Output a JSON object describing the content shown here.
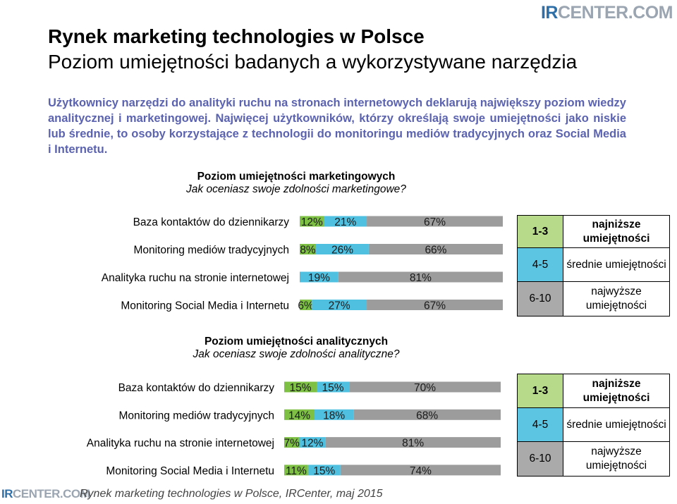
{
  "brand": {
    "logo_ir": "IR",
    "logo_rest": "CENTER.COM"
  },
  "header": {
    "title": "Rynek marketing technologies w Polsce",
    "subtitle": "Poziom umiejętności badanych a wykorzystywane narzędzia"
  },
  "intro": "Użytkownicy narzędzi do analityki ruchu na stronach internetowych deklarują największy poziom wiedzy analitycznej i marketingowej. Najwięcej użytkowników, którzy określają swoje umiejętności jako niskie lub średnie, to osoby korzystające z technologii do monitoringu mediów tradycyjnych oraz Social Media i Internetu.",
  "colors": {
    "low": "#7dc043",
    "mid": "#4fc0e0",
    "high": "#9c9c9c"
  },
  "legend": {
    "k1": "1-3",
    "d1": "najniższe umiejętności",
    "k2": "4-5",
    "d2": "średnie umiejętności",
    "k3": "6-10",
    "d3": "najwyższe umiejętności"
  },
  "chart_data": [
    {
      "type": "bar",
      "stacked": true,
      "orientation": "horizontal",
      "title": "Poziom umiejętności marketingowych",
      "subtitle": "Jak oceniasz swoje zdolności marketingowe?",
      "categories": [
        "Baza kontaktów do dziennikarzy",
        "Monitoring mediów tradycyjnych",
        "Analityka ruchu na stronie internetowej",
        "Monitoring Social Media i Internetu"
      ],
      "series": [
        {
          "name": "1-3",
          "values": [
            12,
            8,
            0,
            6
          ],
          "labels": [
            "12%",
            "8%",
            "",
            "6%"
          ]
        },
        {
          "name": "4-5",
          "values": [
            21,
            26,
            19,
            27
          ],
          "labels": [
            "21%",
            "26%",
            "19%",
            "27%"
          ]
        },
        {
          "name": "6-10",
          "values": [
            67,
            66,
            81,
            67
          ],
          "labels": [
            "67%",
            "66%",
            "81%",
            "67%"
          ]
        }
      ],
      "xlim": [
        0,
        100
      ]
    },
    {
      "type": "bar",
      "stacked": true,
      "orientation": "horizontal",
      "title": "Poziom umiejętności analitycznych",
      "subtitle": "Jak oceniasz swoje zdolności analityczne?",
      "categories": [
        "Baza kontaktów do dziennikarzy",
        "Monitoring mediów tradycyjnych",
        "Analityka ruchu na stronie internetowej",
        "Monitoring Social Media i Internetu"
      ],
      "series": [
        {
          "name": "1-3",
          "values": [
            15,
            14,
            7,
            11
          ],
          "labels": [
            "15%",
            "14%",
            "7%",
            "11%"
          ]
        },
        {
          "name": "4-5",
          "values": [
            15,
            18,
            12,
            15
          ],
          "labels": [
            "15%",
            "18%",
            "12%",
            "15%"
          ]
        },
        {
          "name": "6-10",
          "values": [
            70,
            68,
            81,
            74
          ],
          "labels": [
            "70%",
            "68%",
            "81%",
            "74%"
          ]
        }
      ],
      "xlim": [
        0,
        100
      ]
    }
  ],
  "footer": "Rynek marketing technologies w Polsce, IRCenter, maj 2015"
}
